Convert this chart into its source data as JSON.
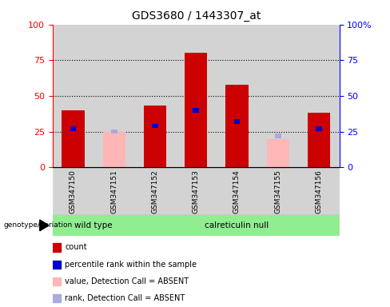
{
  "title": "GDS3680 / 1443307_at",
  "samples": [
    "GSM347150",
    "GSM347151",
    "GSM347152",
    "GSM347153",
    "GSM347154",
    "GSM347155",
    "GSM347156"
  ],
  "count_values": [
    40,
    0,
    43,
    80,
    58,
    0,
    38
  ],
  "percentile_values": [
    27,
    0,
    29,
    40,
    32,
    0,
    27
  ],
  "absent_count": [
    0,
    25,
    0,
    0,
    0,
    20,
    0
  ],
  "absent_rank": [
    0,
    25,
    0,
    0,
    0,
    22,
    0
  ],
  "is_absent": [
    false,
    true,
    false,
    false,
    false,
    true,
    false
  ],
  "bar_width": 0.55,
  "ylim": [
    0,
    100
  ],
  "yticks": [
    0,
    25,
    50,
    75,
    100
  ],
  "red_color": "#cc0000",
  "pink_color": "#ffb6b6",
  "blue_color": "#0000cc",
  "light_blue_color": "#aaaadd",
  "bar_bg_color": "#d3d3d3",
  "green_color": "#90EE90"
}
